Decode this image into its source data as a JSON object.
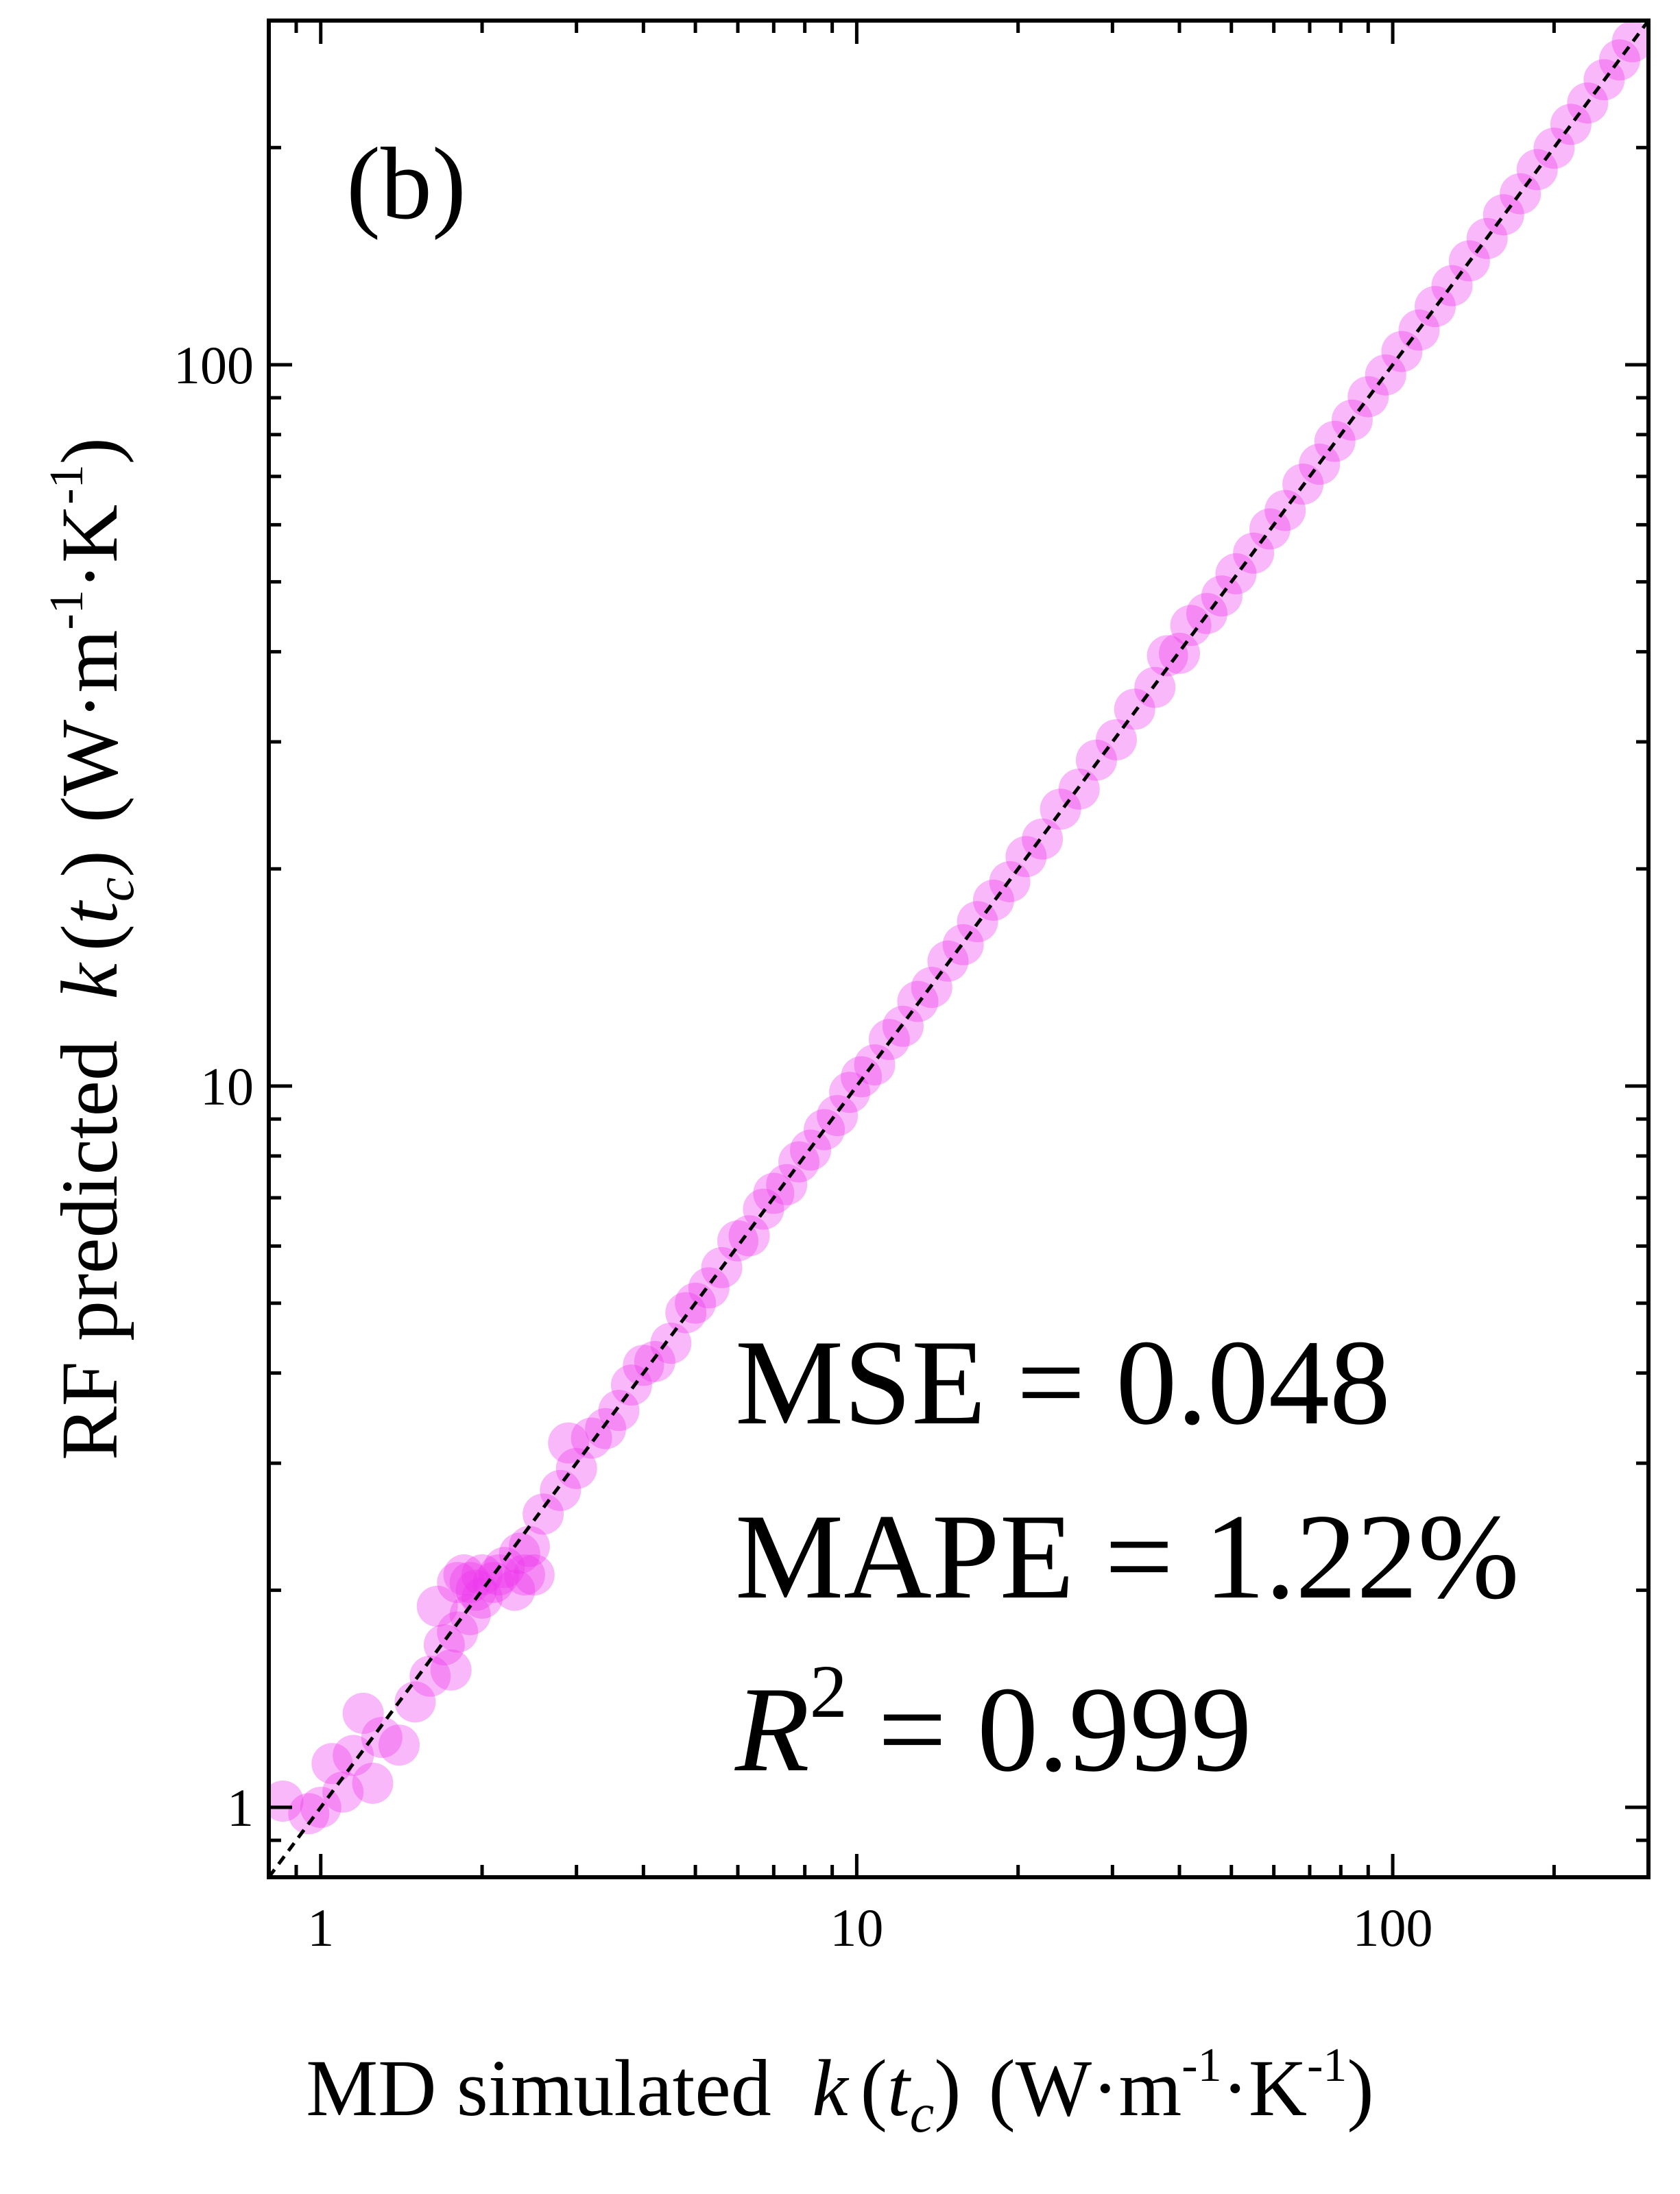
{
  "panel_label": "(b)",
  "chart_data": {
    "type": "scatter",
    "title": "",
    "xlabel": {
      "prefix": "MD simulated ",
      "k": "k",
      "open": "(",
      "t": "t",
      "sub": "c",
      "close": ")",
      "unit_open": "(W·m",
      "exp1": "-1",
      "unit_mid": "·K",
      "exp2": "-1",
      "unit_close": ")"
    },
    "ylabel": {
      "prefix": "RF predicted ",
      "k": "k",
      "open": "(",
      "t": "t",
      "sub": "c",
      "close": ")",
      "unit_open": "(W·m",
      "exp1": "-1",
      "unit_mid": "·K",
      "exp2": "-1",
      "unit_close": ")"
    },
    "x_scale": "log",
    "y_scale": "log",
    "xlim": [
      0.8,
      300
    ],
    "ylim": [
      0.8,
      300
    ],
    "x_ticks": [
      {
        "value": 1,
        "label": "1"
      },
      {
        "value": 10,
        "label": "10"
      },
      {
        "value": 100,
        "label": "100"
      }
    ],
    "y_ticks": [
      {
        "value": 1,
        "label": "1"
      },
      {
        "value": 10,
        "label": "10"
      },
      {
        "value": 100,
        "label": "100"
      }
    ],
    "grid": false,
    "marker_color": "#ee33ee",
    "reference_line": {
      "style": "dashed",
      "color": "#000000",
      "x": [
        0.8,
        300
      ],
      "y": [
        0.8,
        300
      ]
    },
    "points": [
      [
        0.85,
        1.02
      ],
      [
        0.95,
        0.98
      ],
      [
        1.0,
        1.0
      ],
      [
        1.05,
        1.15
      ],
      [
        1.1,
        1.05
      ],
      [
        1.15,
        1.18
      ],
      [
        1.2,
        1.35
      ],
      [
        1.25,
        1.08
      ],
      [
        1.3,
        1.25
      ],
      [
        1.4,
        1.22
      ],
      [
        1.5,
        1.4
      ],
      [
        1.6,
        1.52
      ],
      [
        1.65,
        1.9
      ],
      [
        1.7,
        1.68
      ],
      [
        1.75,
        1.55
      ],
      [
        1.8,
        1.75
      ],
      [
        1.8,
        2.05
      ],
      [
        1.85,
        2.1
      ],
      [
        1.9,
        1.85
      ],
      [
        1.9,
        2.05
      ],
      [
        1.95,
        2.0
      ],
      [
        2.0,
        1.95
      ],
      [
        2.0,
        2.1
      ],
      [
        2.1,
        2.05
      ],
      [
        2.15,
        2.1
      ],
      [
        2.2,
        2.15
      ],
      [
        2.3,
        2.0
      ],
      [
        2.35,
        2.25
      ],
      [
        2.4,
        2.1
      ],
      [
        2.45,
        2.3
      ],
      [
        2.5,
        2.1
      ],
      [
        2.6,
        2.55
      ],
      [
        2.8,
        2.75
      ],
      [
        2.9,
        3.2
      ],
      [
        3.0,
        2.95
      ],
      [
        3.2,
        3.25
      ],
      [
        3.4,
        3.35
      ],
      [
        3.6,
        3.55
      ],
      [
        3.8,
        3.85
      ],
      [
        4.0,
        4.1
      ],
      [
        4.2,
        4.15
      ],
      [
        4.5,
        4.4
      ],
      [
        4.8,
        4.85
      ],
      [
        5.0,
        5.0
      ],
      [
        5.3,
        5.25
      ],
      [
        5.6,
        5.6
      ],
      [
        6.0,
        6.1
      ],
      [
        6.3,
        6.2
      ],
      [
        6.7,
        6.75
      ],
      [
        7.0,
        7.1
      ],
      [
        7.4,
        7.3
      ],
      [
        7.8,
        7.85
      ],
      [
        8.2,
        8.15
      ],
      [
        8.7,
        8.7
      ],
      [
        9.2,
        9.1
      ],
      [
        9.7,
        9.8
      ],
      [
        10.2,
        10.3
      ],
      [
        10.8,
        10.7
      ],
      [
        11.5,
        11.6
      ],
      [
        12.2,
        12.1
      ],
      [
        13.0,
        13.1
      ],
      [
        13.8,
        13.7
      ],
      [
        14.8,
        14.9
      ],
      [
        15.8,
        15.7
      ],
      [
        16.8,
        16.9
      ],
      [
        18.0,
        18.1
      ],
      [
        19.3,
        19.2
      ],
      [
        20.7,
        20.8
      ],
      [
        22.2,
        22.0
      ],
      [
        24.0,
        24.2
      ],
      [
        26.0,
        25.8
      ],
      [
        28.0,
        28.3
      ],
      [
        30.5,
        30.2
      ],
      [
        33.0,
        33.3
      ],
      [
        36.0,
        35.7
      ],
      [
        38.0,
        39.5
      ],
      [
        40.0,
        39.8
      ],
      [
        42.0,
        43.5
      ],
      [
        45.0,
        45.2
      ],
      [
        48.0,
        47.8
      ],
      [
        51.0,
        51.3
      ],
      [
        55.0,
        54.8
      ],
      [
        59.0,
        59.2
      ],
      [
        63.0,
        62.8
      ],
      [
        68.0,
        68.3
      ],
      [
        73.0,
        72.8
      ],
      [
        78.0,
        78.3
      ],
      [
        84.0,
        83.8
      ],
      [
        90.0,
        90.3
      ],
      [
        97.0,
        96.8
      ],
      [
        104.0,
        104.3
      ],
      [
        112.0,
        111.7
      ],
      [
        120.0,
        120.4
      ],
      [
        129.0,
        128.7
      ],
      [
        139.0,
        139.3
      ],
      [
        150.0,
        149.6
      ],
      [
        161.0,
        161.4
      ],
      [
        173.0,
        172.6
      ],
      [
        186.0,
        186.4
      ],
      [
        200.0,
        199.6
      ],
      [
        215.0,
        215.4
      ],
      [
        231.0,
        230.6
      ],
      [
        248.0,
        248.4
      ],
      [
        265.0,
        264.6
      ],
      [
        280.0,
        280.4
      ]
    ],
    "annotations": {
      "mse": "MSE = 0.048",
      "mape": "MAPE = 1.22%",
      "r2_symbol": "R",
      "r2_exp": "2",
      "r2_value": " = 0.999"
    }
  }
}
